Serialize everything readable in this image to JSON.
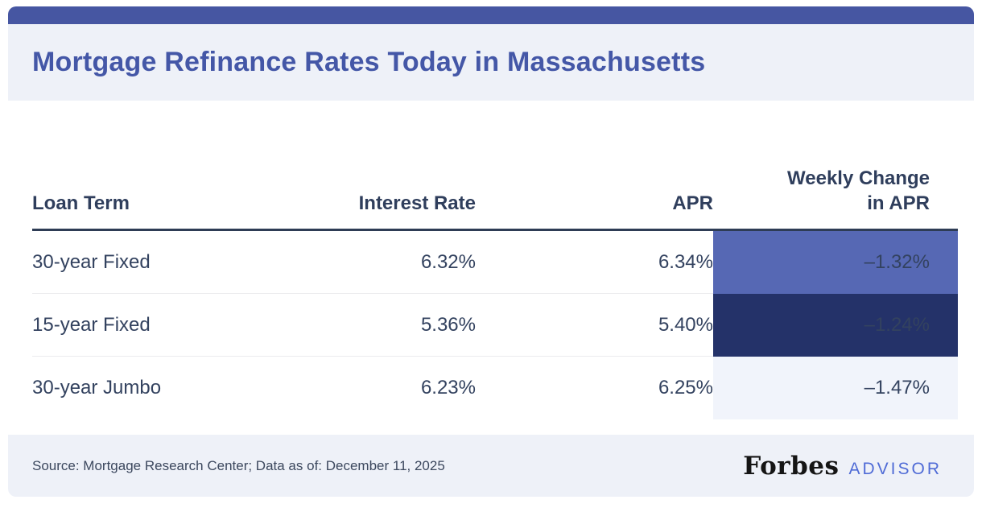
{
  "header": {
    "title": "Mortgage Refinance Rates Today in Massachusetts"
  },
  "table": {
    "columns": {
      "loan_term": "Loan Term",
      "interest_rate": "Interest Rate",
      "apr": "APR",
      "weekly_change": "Weekly Change in APR"
    },
    "rows": [
      {
        "loan_term": "30-year Fixed",
        "interest_rate": "6.32%",
        "apr": "6.34%",
        "weekly_change": "–1.32%"
      },
      {
        "loan_term": "15-year Fixed",
        "interest_rate": "5.36%",
        "apr": "5.40%",
        "weekly_change": "–1.24%"
      },
      {
        "loan_term": "30-year Jumbo",
        "interest_rate": "6.23%",
        "apr": "6.25%",
        "weekly_change": "–1.47%"
      }
    ]
  },
  "footer": {
    "source": "Source: Mortgage Research Center; Data as of: December 11, 2025",
    "brand": "Forbes",
    "brand_suffix": "ADVISOR"
  },
  "colors": {
    "top_bar": "#4656a2",
    "panel_bg": "#eef1f8",
    "title_text": "#4457a7",
    "header_text": "#2f3e5c",
    "body_text": "#33425f",
    "header_rule": "#2e3c55",
    "row_divider": "#ebebee",
    "weekly_cell_row1_bg": "#5668b4",
    "weekly_cell_row2_bg": "#243269",
    "weekly_cell_row3_bg": "#f1f4fb",
    "weekly_cell_light_text": "#ffffff",
    "advisor_text": "#4f6bd6"
  },
  "chart_data": {
    "type": "table",
    "title": "Mortgage Refinance Rates Today in Massachusetts",
    "columns": [
      "Loan Term",
      "Interest Rate",
      "APR",
      "Weekly Change in APR"
    ],
    "rows": [
      [
        "30-year Fixed",
        "6.32%",
        "6.34%",
        "–1.32%"
      ],
      [
        "15-year Fixed",
        "5.36%",
        "5.40%",
        "–1.24%"
      ],
      [
        "30-year Jumbo",
        "6.23%",
        "6.25%",
        "–1.47%"
      ]
    ],
    "numeric": {
      "interest_rate_pct": [
        6.32,
        5.36,
        6.23
      ],
      "apr_pct": [
        6.34,
        5.4,
        6.25
      ],
      "weekly_change_in_apr_pct": [
        -1.32,
        -1.24,
        -1.47
      ]
    },
    "notes": "Source: Mortgage Research Center; Data as of: December 11, 2025"
  }
}
